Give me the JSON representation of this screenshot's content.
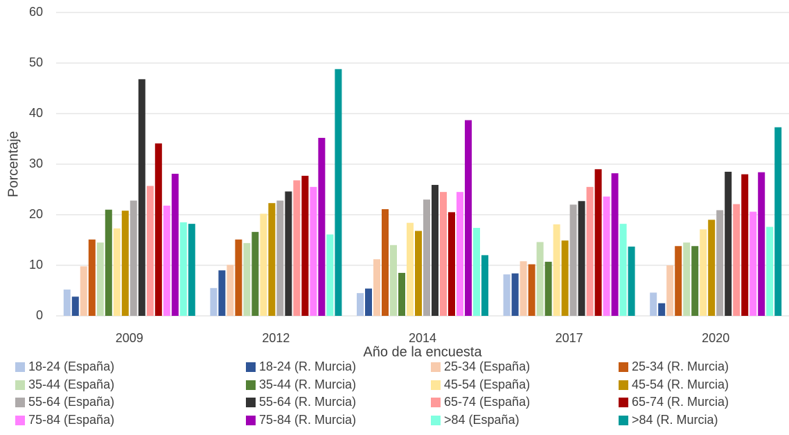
{
  "chart_data": {
    "type": "bar",
    "categories": [
      "2009",
      "2012",
      "2014",
      "2017",
      "2020"
    ],
    "x_label": "Año de la encuesta",
    "y_label": "Porcentaje",
    "ylim": [
      0,
      60
    ],
    "yticks": [
      0,
      10,
      20,
      30,
      40,
      50,
      60
    ],
    "grid": true,
    "legend": "bottom",
    "series": [
      {
        "name": "18-24 (España)",
        "color": "#b4c7e7",
        "values": [
          5.2,
          5.5,
          4.5,
          8.2,
          4.6
        ]
      },
      {
        "name": "18-24 (R. Murcia)",
        "color": "#2f5597",
        "values": [
          3.8,
          9.0,
          5.4,
          8.4,
          2.5
        ]
      },
      {
        "name": "25-34 (España)",
        "color": "#f8cbad",
        "values": [
          9.8,
          10.1,
          11.2,
          10.8,
          10.0
        ]
      },
      {
        "name": "25-34 (R. Murcia)",
        "color": "#c55a11",
        "values": [
          15.1,
          15.1,
          21.1,
          10.2,
          13.8
        ]
      },
      {
        "name": "35-44 (España)",
        "color": "#c5e0b4",
        "values": [
          14.5,
          14.4,
          14.0,
          14.6,
          14.5
        ]
      },
      {
        "name": "35-44 (R. Murcia)",
        "color": "#538135",
        "values": [
          21.0,
          16.6,
          8.5,
          10.7,
          13.8
        ]
      },
      {
        "name": "45-54 (España)",
        "color": "#ffe699",
        "values": [
          17.3,
          20.2,
          18.4,
          18.1,
          17.1
        ]
      },
      {
        "name": "45-54 (R. Murcia)",
        "color": "#bf9000",
        "values": [
          20.8,
          22.3,
          16.8,
          14.9,
          19.0
        ]
      },
      {
        "name": "55-64 (España)",
        "color": "#aeaaaa",
        "values": [
          22.8,
          22.8,
          23.0,
          22.0,
          20.9
        ]
      },
      {
        "name": "55-64 (R. Murcia)",
        "color": "#333333",
        "values": [
          46.8,
          24.6,
          25.9,
          22.7,
          28.5
        ]
      },
      {
        "name": "65-74 (España)",
        "color": "#ff9999",
        "values": [
          25.7,
          26.8,
          24.5,
          25.5,
          22.1
        ]
      },
      {
        "name": "65-74 (R. Murcia)",
        "color": "#a50000",
        "values": [
          34.1,
          27.7,
          20.5,
          29.0,
          28.0
        ]
      },
      {
        "name": "75-84 (España)",
        "color": "#ff80ff",
        "values": [
          21.8,
          25.5,
          24.5,
          23.6,
          20.6
        ]
      },
      {
        "name": "75-84 (R. Murcia)",
        "color": "#a000b4",
        "values": [
          28.1,
          35.2,
          38.7,
          28.2,
          28.4
        ]
      },
      {
        "name": ">84 (España)",
        "color": "#80ffe0",
        "values": [
          18.5,
          16.1,
          17.4,
          18.2,
          17.6
        ]
      },
      {
        "name": ">84 (R. Murcia)",
        "color": "#009999",
        "values": [
          18.2,
          48.8,
          12.0,
          13.7,
          37.3
        ]
      }
    ]
  }
}
